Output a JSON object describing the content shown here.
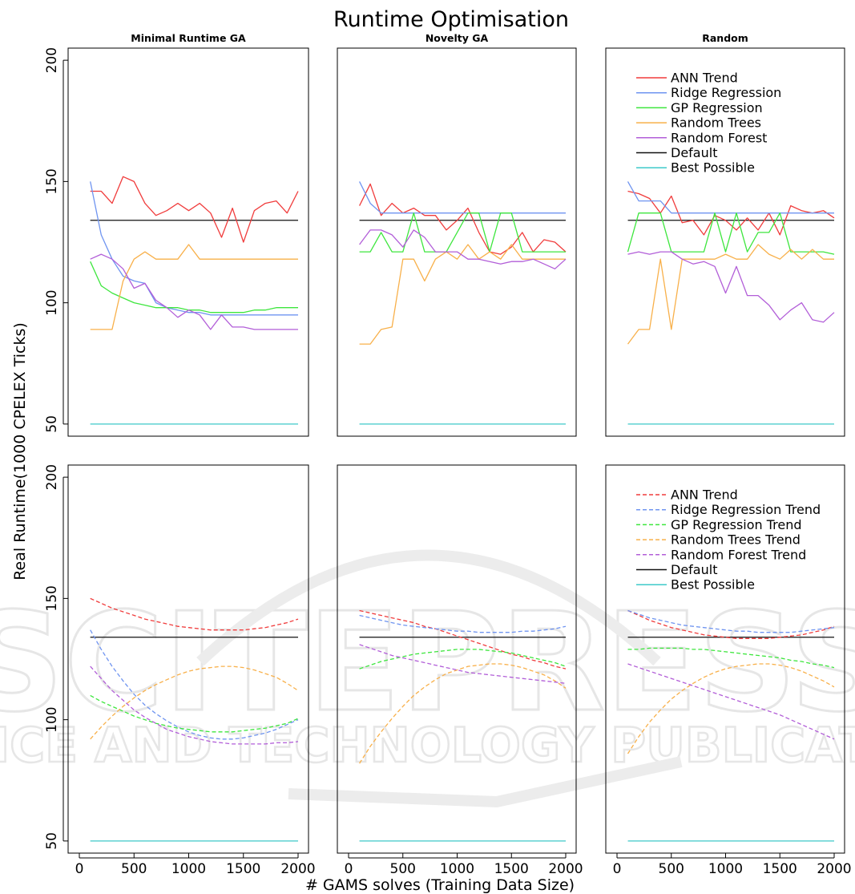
{
  "chart_data": {
    "type": "line",
    "title": "Runtime Optimisation",
    "xlabel": "# GAMS solves (Training Data Size)",
    "ylabel": "Real Runtime(1000 CPELEX Ticks)",
    "xlim": [
      0,
      2000
    ],
    "ylim": [
      50,
      200
    ],
    "xticks": [
      0,
      500,
      1000,
      1500,
      2000
    ],
    "yticks": [
      50,
      100,
      150,
      200
    ],
    "columns": [
      "Minimal Runtime GA",
      "Novelty GA",
      "Random"
    ],
    "colors": {
      "ann": "#f03c3c",
      "ridge": "#6f94f0",
      "gp": "#3ee63e",
      "trees": "#f8b04a",
      "forest": "#b25ed8",
      "default": "#111111",
      "best": "#3ec9c9"
    },
    "watermark": "SCITEPRESS SCIENCE AND TECHNOLOGY PUBLICATIONS",
    "x": [
      100,
      200,
      300,
      400,
      500,
      600,
      700,
      800,
      900,
      1000,
      1100,
      1200,
      1300,
      1400,
      1500,
      1600,
      1700,
      1800,
      1900,
      2000
    ],
    "top_legend": [
      "ANN Trend",
      "Ridge Regression",
      "GP Regression",
      "Random Trees",
      "Random Forest",
      "Default",
      "Best Possible"
    ],
    "bottom_legend": [
      "ANN Trend",
      "Ridge Regression Trend",
      "GP Regression Trend",
      "Random Trees Trend",
      "Random Forest Trend",
      "Default",
      "Best Possible"
    ],
    "reference": {
      "default": 134,
      "best_possible": 50
    },
    "top": [
      {
        "ann": [
          146,
          146,
          141,
          152,
          150,
          141,
          136,
          138,
          141,
          138,
          141,
          137,
          127,
          139,
          125,
          138,
          141,
          142,
          137,
          146
        ],
        "ridge": [
          150,
          128,
          118,
          111,
          109,
          108,
          100,
          98,
          97,
          96,
          96,
          95,
          95,
          95,
          95,
          95,
          95,
          95,
          95,
          95
        ],
        "gp": [
          117,
          107,
          104,
          102,
          100,
          99,
          98,
          98,
          98,
          97,
          97,
          96,
          96,
          96,
          96,
          97,
          97,
          98,
          98,
          98
        ],
        "trees": [
          89,
          89,
          89,
          109,
          118,
          121,
          118,
          118,
          118,
          124,
          118,
          118,
          118,
          118,
          118,
          118,
          118,
          118,
          118,
          118
        ],
        "forest": [
          118,
          120,
          118,
          114,
          106,
          108,
          101,
          98,
          94,
          97,
          95,
          89,
          95,
          90,
          90,
          89,
          89,
          89,
          89,
          89
        ]
      },
      {
        "ann": [
          140,
          149,
          136,
          141,
          137,
          139,
          136,
          136,
          130,
          134,
          139,
          129,
          121,
          120,
          123,
          129,
          121,
          126,
          125,
          121
        ],
        "ridge": [
          150,
          141,
          137,
          137,
          137,
          137,
          137,
          137,
          137,
          137,
          137,
          137,
          137,
          137,
          137,
          137,
          137,
          137,
          137,
          137
        ],
        "gp": [
          121,
          121,
          129,
          121,
          121,
          137,
          121,
          121,
          121,
          129,
          137,
          137,
          121,
          137,
          137,
          121,
          121,
          121,
          121,
          121
        ],
        "trees": [
          83,
          83,
          89,
          90,
          118,
          118,
          109,
          118,
          121,
          118,
          124,
          118,
          121,
          118,
          124,
          118,
          118,
          118,
          118,
          118
        ],
        "forest": [
          124,
          130,
          130,
          128,
          123,
          130,
          127,
          121,
          121,
          121,
          118,
          118,
          117,
          116,
          117,
          117,
          118,
          116,
          114,
          118
        ]
      },
      {
        "ann": [
          146,
          145,
          143,
          137,
          144,
          133,
          134,
          128,
          136,
          134,
          130,
          135,
          130,
          137,
          128,
          140,
          138,
          137,
          138,
          135
        ],
        "ridge": [
          150,
          142,
          142,
          142,
          137,
          137,
          137,
          137,
          137,
          137,
          137,
          137,
          137,
          137,
          137,
          137,
          137,
          137,
          137,
          137
        ],
        "gp": [
          121,
          137,
          137,
          137,
          121,
          121,
          121,
          121,
          137,
          121,
          137,
          121,
          129,
          129,
          137,
          121,
          121,
          121,
          121,
          120
        ],
        "trees": [
          83,
          89,
          89,
          118,
          89,
          118,
          118,
          118,
          118,
          120,
          118,
          118,
          124,
          120,
          118,
          122,
          118,
          122,
          118,
          118
        ],
        "forest": [
          120,
          121,
          120,
          121,
          121,
          118,
          116,
          117,
          115,
          104,
          115,
          103,
          103,
          99,
          93,
          97,
          100,
          93,
          92,
          96
        ]
      }
    ],
    "bottom": [
      {
        "ann": [
          150,
          148,
          146,
          144.5,
          143,
          141.5,
          140.5,
          139.5,
          138.5,
          138,
          137.5,
          137,
          137,
          137,
          137,
          137.5,
          138,
          139,
          140,
          141.5
        ],
        "ridge": [
          137,
          129,
          122,
          116,
          110.5,
          106,
          102.5,
          99.5,
          97,
          95,
          93.5,
          92.5,
          92,
          92,
          92.5,
          93.5,
          94.5,
          96,
          98,
          100
        ],
        "gp": [
          110,
          107.5,
          105.5,
          103.5,
          101.5,
          100,
          98.5,
          97.5,
          96.5,
          96,
          95.5,
          95,
          95,
          95,
          95.5,
          96,
          96.5,
          97.5,
          98.5,
          100.5
        ],
        "trees": [
          92,
          97,
          101.5,
          105.5,
          109,
          112,
          114.5,
          116.5,
          118.5,
          120,
          121,
          121.5,
          122,
          122,
          121.5,
          120.5,
          119,
          117.5,
          115,
          112
        ],
        "forest": [
          122,
          117,
          112,
          108,
          104,
          101,
          98.5,
          96,
          94.5,
          93,
          92,
          91,
          90.5,
          90,
          90,
          90,
          90,
          90.5,
          90.5,
          91
        ]
      },
      {
        "ann": [
          145,
          144,
          143,
          142,
          141,
          140,
          138.5,
          137.5,
          136,
          134.5,
          133,
          131.5,
          130,
          128.5,
          127,
          126,
          124.5,
          123.5,
          122,
          121
        ],
        "ridge": [
          143,
          142,
          141,
          140,
          139,
          138.5,
          138,
          137.5,
          137,
          136.5,
          136.5,
          136,
          136,
          136,
          136,
          136.5,
          136.5,
          137,
          137.5,
          138.5
        ],
        "gp": [
          121,
          122.5,
          124,
          125,
          126,
          127,
          127.5,
          128,
          128.5,
          129,
          129,
          129,
          128.5,
          128,
          127.5,
          126.5,
          125.5,
          124.5,
          123.5,
          122
        ],
        "trees": [
          82,
          89,
          95,
          100.5,
          105.5,
          110,
          113.5,
          116.5,
          119,
          120.5,
          122,
          122.5,
          123,
          123,
          122.5,
          121.5,
          120,
          118.5,
          116,
          113
        ],
        "forest": [
          131,
          129.5,
          128,
          126.5,
          125.5,
          124.5,
          123.5,
          122.5,
          121.5,
          120.5,
          119.5,
          119,
          118.5,
          118,
          117.5,
          117,
          116.5,
          116,
          115.5,
          115
        ]
      },
      {
        "ann": [
          145,
          143,
          141,
          139.5,
          138,
          137,
          136,
          135,
          134.5,
          134,
          133.5,
          133.5,
          133.5,
          133.5,
          134,
          134.5,
          135,
          136,
          137,
          138.5
        ],
        "ridge": [
          145,
          143.5,
          142,
          141,
          140,
          139,
          138.5,
          138,
          137.5,
          137,
          136.5,
          136.5,
          136,
          136,
          136,
          136,
          136.5,
          137,
          137.5,
          138
        ],
        "gp": [
          129,
          129,
          129.5,
          129.5,
          129.5,
          129.5,
          129,
          129,
          128.5,
          128,
          127.5,
          127,
          126.5,
          126,
          125.5,
          124.5,
          124,
          123,
          122.5,
          121.5
        ],
        "trees": [
          86,
          93,
          99,
          104,
          108.5,
          112,
          115,
          117.5,
          119.5,
          121,
          122,
          122.5,
          123,
          123,
          122.5,
          121.5,
          120,
          118,
          116,
          113.5
        ],
        "forest": [
          123,
          121.5,
          120,
          118.5,
          117,
          115.5,
          114,
          112.5,
          111,
          109.5,
          108,
          106.5,
          105,
          103.5,
          102,
          100,
          98,
          96,
          94,
          92
        ]
      }
    ]
  }
}
